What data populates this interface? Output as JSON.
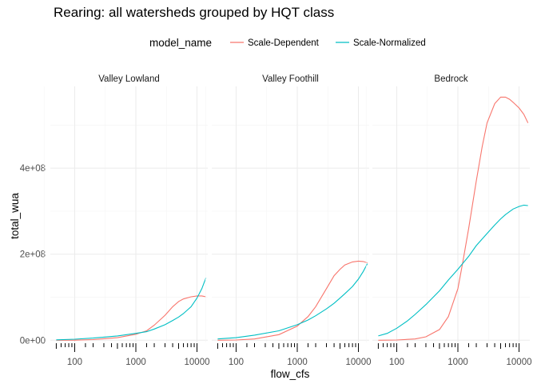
{
  "chart_data": {
    "type": "line",
    "title": "Rearing: all watersheds grouped by HQT class",
    "xlabel": "flow_cfs",
    "ylabel": "total_wua",
    "x_scale": "log10",
    "x_ticks": [
      100,
      1000,
      10000
    ],
    "x_tick_labels": [
      "100",
      "1000",
      "10000"
    ],
    "y_ticks": [
      0,
      200000000,
      400000000
    ],
    "y_tick_labels": [
      "0e+00",
      "2e+08",
      "4e+08"
    ],
    "xlim": [
      40,
      15000
    ],
    "ylim": [
      -5000000,
      590000000
    ],
    "grid": true,
    "legend": {
      "title": "model_name",
      "position": "top",
      "entries": [
        {
          "name": "Scale-Dependent",
          "color": "#F8766D"
        },
        {
          "name": "Scale-Normalized",
          "color": "#00BFC4"
        }
      ]
    },
    "rug_x": [
      50,
      60,
      70,
      80,
      90,
      150,
      200,
      300,
      400,
      500,
      600,
      700,
      800,
      900,
      1500,
      2000,
      3000,
      4000,
      5000,
      6000,
      7000,
      8000,
      9000
    ],
    "panels": [
      {
        "label": "Valley Lowland",
        "series": [
          {
            "name": "Scale-Dependent",
            "color": "#F8766D",
            "points": [
              [
                50,
                0
              ],
              [
                100,
                200000
              ],
              [
                200,
                1500000
              ],
              [
                500,
                6000000
              ],
              [
                1000,
                14000000
              ],
              [
                1500,
                22000000
              ],
              [
                2000,
                35000000
              ],
              [
                3000,
                58000000
              ],
              [
                4000,
                78000000
              ],
              [
                5000,
                90000000
              ],
              [
                6000,
                96000000
              ],
              [
                8000,
                101000000
              ],
              [
                10000,
                103000000
              ],
              [
                12000,
                103000000
              ],
              [
                14000,
                101000000
              ]
            ]
          },
          {
            "name": "Scale-Normalized",
            "color": "#00BFC4",
            "points": [
              [
                50,
                1000000
              ],
              [
                100,
                2500000
              ],
              [
                200,
                5000000
              ],
              [
                500,
                10000000
              ],
              [
                1000,
                16000000
              ],
              [
                1500,
                20000000
              ],
              [
                2000,
                26000000
              ],
              [
                3000,
                36000000
              ],
              [
                4000,
                46000000
              ],
              [
                5000,
                54000000
              ],
              [
                6000,
                62000000
              ],
              [
                8000,
                78000000
              ],
              [
                10000,
                98000000
              ],
              [
                12000,
                120000000
              ],
              [
                14000,
                145000000
              ]
            ]
          }
        ]
      },
      {
        "label": "Valley Foothill",
        "series": [
          {
            "name": "Scale-Dependent",
            "color": "#F8766D",
            "points": [
              [
                50,
                0
              ],
              [
                100,
                500000
              ],
              [
                200,
                3000000
              ],
              [
                500,
                13000000
              ],
              [
                1000,
                33000000
              ],
              [
                1500,
                55000000
              ],
              [
                2000,
                78000000
              ],
              [
                3000,
                120000000
              ],
              [
                4000,
                150000000
              ],
              [
                5000,
                165000000
              ],
              [
                6000,
                175000000
              ],
              [
                8000,
                182000000
              ],
              [
                10000,
                184000000
              ],
              [
                12000,
                183000000
              ],
              [
                14000,
                180000000
              ]
            ]
          },
          {
            "name": "Scale-Normalized",
            "color": "#00BFC4",
            "points": [
              [
                50,
                3000000
              ],
              [
                100,
                6000000
              ],
              [
                200,
                12000000
              ],
              [
                500,
                22000000
              ],
              [
                1000,
                36000000
              ],
              [
                1500,
                47000000
              ],
              [
                2000,
                57000000
              ],
              [
                3000,
                73000000
              ],
              [
                4000,
                86000000
              ],
              [
                5000,
                98000000
              ],
              [
                6000,
                108000000
              ],
              [
                8000,
                125000000
              ],
              [
                10000,
                142000000
              ],
              [
                12000,
                160000000
              ],
              [
                14000,
                178000000
              ]
            ]
          }
        ]
      },
      {
        "label": "Bedrock",
        "series": [
          {
            "name": "Scale-Dependent",
            "color": "#F8766D",
            "points": [
              [
                50,
                0
              ],
              [
                100,
                500000
              ],
              [
                200,
                3000000
              ],
              [
                300,
                8000000
              ],
              [
                500,
                25000000
              ],
              [
                700,
                55000000
              ],
              [
                1000,
                120000000
              ],
              [
                1200,
                180000000
              ],
              [
                1500,
                260000000
              ],
              [
                2000,
                370000000
              ],
              [
                2500,
                450000000
              ],
              [
                3000,
                505000000
              ],
              [
                4000,
                550000000
              ],
              [
                5000,
                565000000
              ],
              [
                6000,
                565000000
              ],
              [
                7000,
                560000000
              ],
              [
                8000,
                553000000
              ],
              [
                10000,
                540000000
              ],
              [
                12000,
                525000000
              ],
              [
                14000,
                505000000
              ]
            ]
          },
          {
            "name": "Scale-Normalized",
            "color": "#00BFC4",
            "points": [
              [
                50,
                10000000
              ],
              [
                70,
                16000000
              ],
              [
                100,
                28000000
              ],
              [
                150,
                45000000
              ],
              [
                200,
                60000000
              ],
              [
                300,
                83000000
              ],
              [
                500,
                115000000
              ],
              [
                700,
                140000000
              ],
              [
                1000,
                165000000
              ],
              [
                1500,
                195000000
              ],
              [
                2000,
                220000000
              ],
              [
                3000,
                248000000
              ],
              [
                4000,
                268000000
              ],
              [
                5000,
                282000000
              ],
              [
                6000,
                292000000
              ],
              [
                8000,
                305000000
              ],
              [
                10000,
                311000000
              ],
              [
                12000,
                314000000
              ],
              [
                14000,
                313000000
              ]
            ]
          }
        ]
      }
    ]
  }
}
